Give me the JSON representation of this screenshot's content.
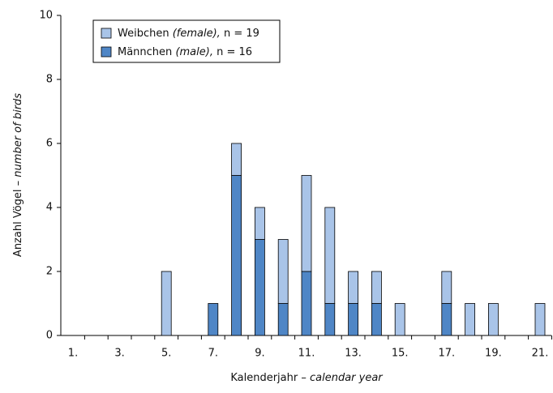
{
  "chart_data": {
    "type": "stacked-bar",
    "categories": [
      "1.",
      null,
      "3.",
      null,
      "5.",
      null,
      "7.",
      null,
      "9.",
      null,
      "11.",
      null,
      "13.",
      null,
      "15.",
      null,
      "17.",
      null,
      "19.",
      null,
      "21."
    ],
    "series": [
      {
        "name": "Männchen",
        "translation": "(male),",
        "n_label": "n = 16",
        "color": "#4f86c6",
        "values": [
          0,
          0,
          0,
          0,
          0,
          0,
          1,
          5,
          3,
          1,
          2,
          1,
          1,
          1,
          0,
          0,
          1,
          0,
          0,
          0,
          0
        ]
      },
      {
        "name": "Weibchen",
        "translation": "(female),",
        "n_label": "n = 19",
        "color": "#a9c4e8",
        "values": [
          0,
          0,
          0,
          0,
          2,
          0,
          0,
          1,
          1,
          2,
          3,
          3,
          1,
          1,
          1,
          0,
          1,
          1,
          1,
          0,
          1
        ]
      }
    ],
    "ylim": [
      0,
      10
    ],
    "yticks": [
      0,
      2,
      4,
      6,
      8,
      10
    ],
    "x_label": "Kalenderjahr –",
    "x_label_en": "calendar year",
    "y_label": "Anzahl Vögel –",
    "y_label_en": "number of birds"
  }
}
